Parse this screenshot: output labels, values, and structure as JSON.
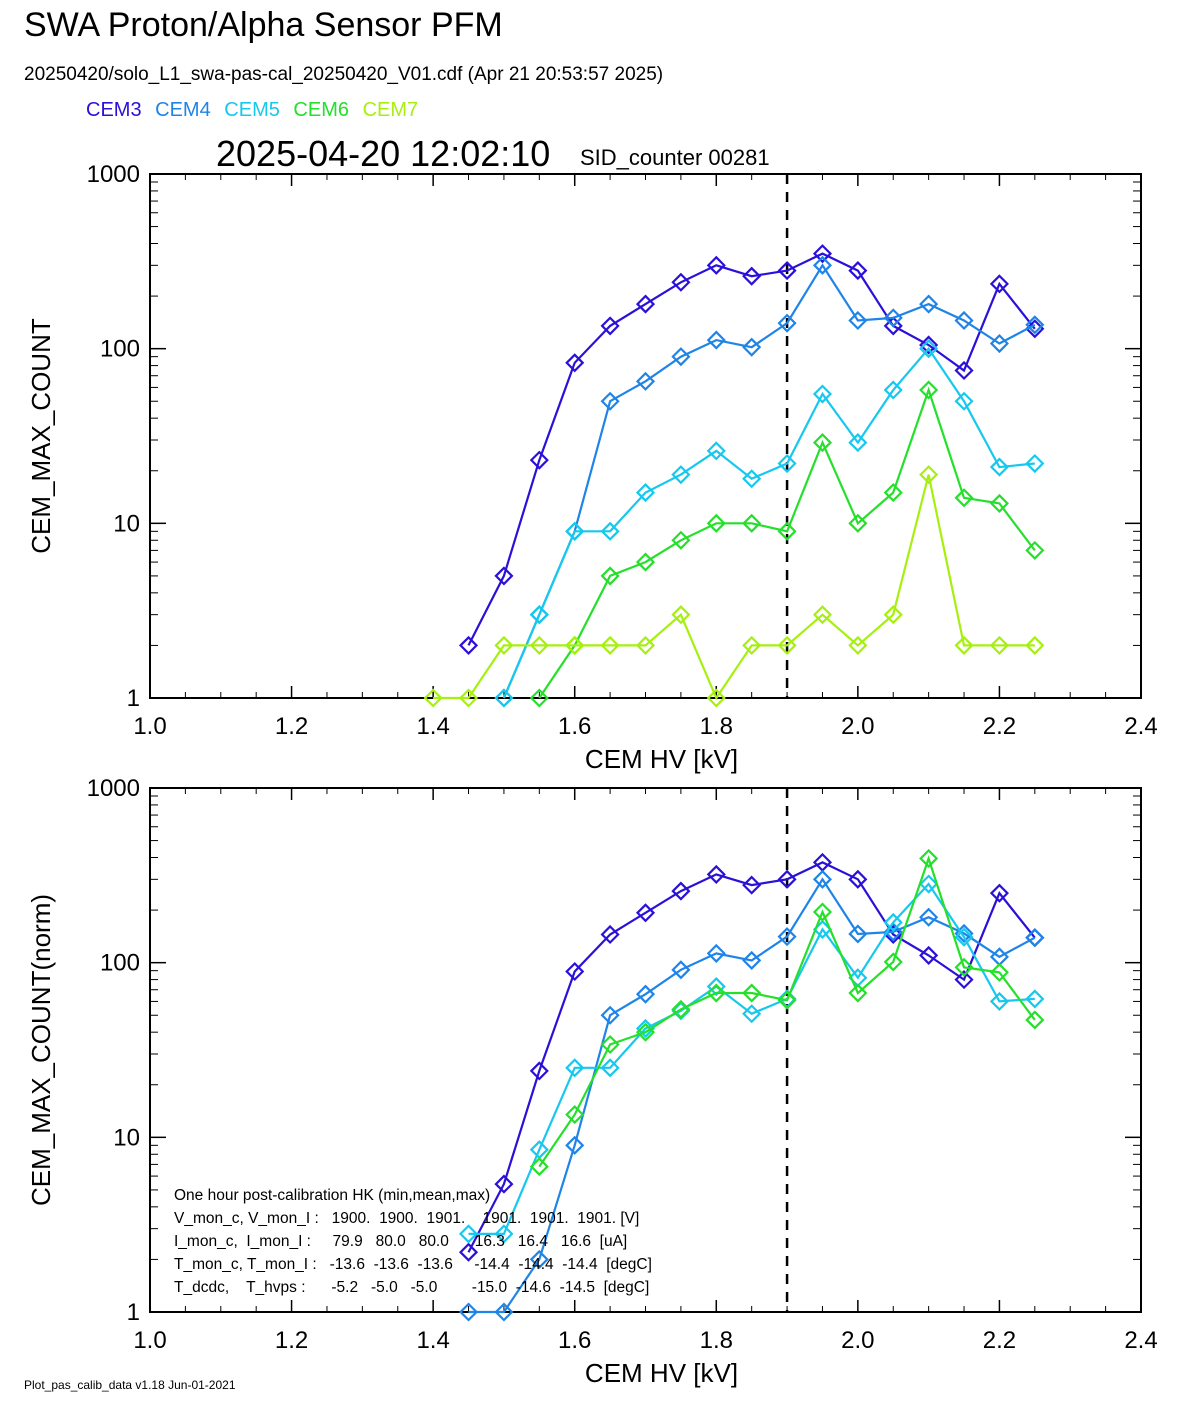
{
  "header": {
    "title": "SWA Proton/Alpha Sensor PFM",
    "subtitle": "20250420/solo_L1_swa-pas-cal_20250420_V01.cdf  (Apr 21 20:53:57 2025)",
    "timestamp": "2025-04-20 12:02:10",
    "sid_counter": "SID_counter 00281"
  },
  "legend": [
    {
      "name": "CEM3",
      "color": "#2a10d8"
    },
    {
      "name": "CEM4",
      "color": "#1f84e8"
    },
    {
      "name": "CEM5",
      "color": "#17c8ee"
    },
    {
      "name": "CEM6",
      "color": "#25e02a"
    },
    {
      "name": "CEM7",
      "color": "#a6f00f"
    }
  ],
  "footer": "Plot_pas_calib_data v1.18 Jun-01-2021",
  "hk_box": {
    "lines": [
      "One hour post-calibration HK (min,mean,max)",
      "V_mon_c, V_mon_I :   1900.  1900.  1901.    1901.  1901.  1901. [V]",
      "I_mon_c,  I_mon_I :     79.9   80.0   80.0      16.3   16.4   16.6  [uA]",
      "T_mon_c, T_mon_I :   -13.6  -13.6  -13.6     -14.4  -14.4  -14.4  [degC]",
      "T_dcdc,    T_hvps :      -5.2   -5.0   -5.0        -15.0  -14.6  -14.5  [degC]"
    ]
  },
  "chart_data": [
    {
      "type": "line",
      "xlabel": "CEM HV [kV]",
      "ylabel": "CEM_MAX_COUNT",
      "xlim": [
        1.0,
        2.4
      ],
      "ylim": [
        1,
        1000
      ],
      "yscale": "log",
      "xticks": [
        "1.0",
        "1.2",
        "1.4",
        "1.6",
        "1.8",
        "2.0",
        "2.2",
        "2.4"
      ],
      "yticks": [
        "1",
        "10",
        "100",
        "1000"
      ],
      "marker": "diamond",
      "vline": 1.9,
      "series": [
        {
          "name": "CEM3",
          "color": "#2a10d8",
          "x": [
            1.45,
            1.5,
            1.55,
            1.6,
            1.65,
            1.7,
            1.75,
            1.8,
            1.85,
            1.9,
            1.95,
            2.0,
            2.05,
            2.1,
            2.15,
            2.2,
            2.25
          ],
          "y": [
            2,
            5,
            23,
            83,
            135,
            180,
            240,
            300,
            260,
            280,
            350,
            280,
            135,
            105,
            75,
            235,
            130
          ]
        },
        {
          "name": "CEM4",
          "color": "#1f84e8",
          "x": [
            1.5,
            1.55,
            1.6,
            1.65,
            1.7,
            1.75,
            1.8,
            1.85,
            1.9,
            1.95,
            2.0,
            2.05,
            2.1,
            2.15,
            2.2,
            2.25
          ],
          "y": [
            1,
            3,
            9,
            50,
            65,
            90,
            112,
            102,
            140,
            300,
            145,
            150,
            180,
            145,
            107,
            137
          ]
        },
        {
          "name": "CEM5",
          "color": "#17c8ee",
          "x": [
            1.5,
            1.55,
            1.6,
            1.65,
            1.7,
            1.75,
            1.8,
            1.85,
            1.9,
            1.95,
            2.0,
            2.05,
            2.1,
            2.15,
            2.2,
            2.25
          ],
          "y": [
            1,
            3,
            9,
            9,
            15,
            19,
            26,
            18,
            22,
            55,
            29,
            58,
            100,
            50,
            21,
            22
          ]
        },
        {
          "name": "CEM6",
          "color": "#25e02a",
          "x": [
            1.55,
            1.6,
            1.65,
            1.7,
            1.75,
            1.8,
            1.85,
            1.9,
            1.95,
            2.0,
            2.05,
            2.1,
            2.15,
            2.2,
            2.25
          ],
          "y": [
            1,
            2,
            5,
            6,
            8,
            10,
            10,
            9,
            29,
            10,
            15,
            58,
            14,
            13,
            7
          ]
        },
        {
          "name": "CEM7",
          "color": "#a6f00f",
          "x": [
            1.4,
            1.45,
            1.5,
            1.55,
            1.6,
            1.65,
            1.7,
            1.75,
            1.8,
            1.85,
            1.9,
            1.95,
            2.0,
            2.05,
            2.1,
            2.15,
            2.2,
            2.25
          ],
          "y": [
            1,
            1,
            2,
            2,
            2,
            2,
            2,
            3,
            1,
            2,
            2,
            3,
            2,
            3,
            19,
            2,
            2,
            2
          ]
        }
      ]
    },
    {
      "type": "line",
      "xlabel": "CEM HV [kV]",
      "ylabel": "CEM_MAX_COUNT(norm)",
      "xlim": [
        1.0,
        2.4
      ],
      "ylim": [
        1,
        1000
      ],
      "yscale": "log",
      "xticks": [
        "1.0",
        "1.2",
        "1.4",
        "1.6",
        "1.8",
        "2.0",
        "2.2",
        "2.4"
      ],
      "yticks": [
        "1",
        "10",
        "100",
        "1000"
      ],
      "marker": "diamond",
      "vline": 1.9,
      "series": [
        {
          "name": "CEM3",
          "color": "#2a10d8",
          "x": [
            1.45,
            1.5,
            1.55,
            1.6,
            1.65,
            1.7,
            1.75,
            1.8,
            1.85,
            1.9,
            1.95,
            2.0,
            2.05,
            2.1,
            2.15,
            2.2,
            2.25
          ],
          "y": [
            2.2,
            5.4,
            24,
            89,
            145,
            193,
            257,
            320,
            278,
            300,
            375,
            300,
            145,
            110,
            80,
            250,
            139
          ]
        },
        {
          "name": "CEM4",
          "color": "#1f84e8",
          "x": [
            1.45,
            1.5,
            1.55,
            1.6,
            1.65,
            1.7,
            1.75,
            1.8,
            1.85,
            1.9,
            1.95,
            2.0,
            2.05,
            2.1,
            2.15,
            2.2,
            2.25
          ],
          "y": [
            1,
            1,
            2,
            9,
            50,
            66,
            91,
            113,
            103,
            141,
            300,
            146,
            150,
            182,
            147,
            108,
            139
          ]
        },
        {
          "name": "CEM5",
          "color": "#17c8ee",
          "x": [
            1.45,
            1.5,
            1.55,
            1.6,
            1.65,
            1.7,
            1.75,
            1.8,
            1.85,
            1.9,
            1.95,
            2.0,
            2.05,
            2.1,
            2.15,
            2.2,
            2.25
          ],
          "y": [
            2.8,
            2.8,
            8.5,
            25,
            25,
            42,
            53,
            73,
            51,
            62,
            155,
            82,
            170,
            282,
            140,
            60,
            62
          ]
        },
        {
          "name": "CEM6",
          "color": "#25e02a",
          "x": [
            1.55,
            1.6,
            1.65,
            1.7,
            1.75,
            1.8,
            1.85,
            1.9,
            1.95,
            2.0,
            2.05,
            2.1,
            2.15,
            2.2,
            2.25
          ],
          "y": [
            6.8,
            13.5,
            34,
            40,
            54,
            67,
            67,
            61,
            195,
            67,
            101,
            395,
            94,
            88,
            47
          ]
        }
      ]
    }
  ]
}
